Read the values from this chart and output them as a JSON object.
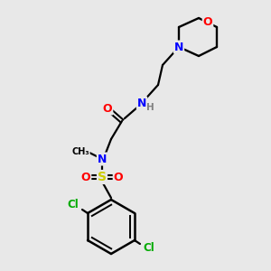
{
  "background_color": "#e8e8e8",
  "bond_color": "#000000",
  "atom_colors": {
    "O": "#ff0000",
    "N": "#0000ff",
    "S": "#cccc00",
    "Cl": "#00aa00",
    "H": "#808080"
  },
  "figsize": [
    3.0,
    3.0
  ],
  "dpi": 100
}
